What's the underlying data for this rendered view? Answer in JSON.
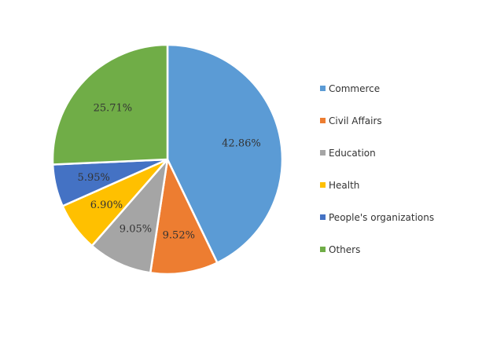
{
  "chart_data": {
    "type": "pie",
    "title": "",
    "legend_position": "right",
    "start_angle_deg": 0,
    "direction": "clockwise",
    "slices": [
      {
        "label": "Commerce",
        "value": 42.86,
        "display": "42.86%",
        "color": "#5b9bd5"
      },
      {
        "label": "Civil Affairs",
        "value": 9.52,
        "display": "9.52%",
        "color": "#ed7d31"
      },
      {
        "label": "Education",
        "value": 9.05,
        "display": "9.05%",
        "color": "#a5a5a5"
      },
      {
        "label": "Health",
        "value": 6.9,
        "display": "6.90%",
        "color": "#ffc000"
      },
      {
        "label": "People's organizations",
        "value": 5.95,
        "display": "5.95%",
        "color": "#4472c4"
      },
      {
        "label": "Others",
        "value": 25.71,
        "display": "25.71%",
        "color": "#70ad47"
      }
    ]
  }
}
